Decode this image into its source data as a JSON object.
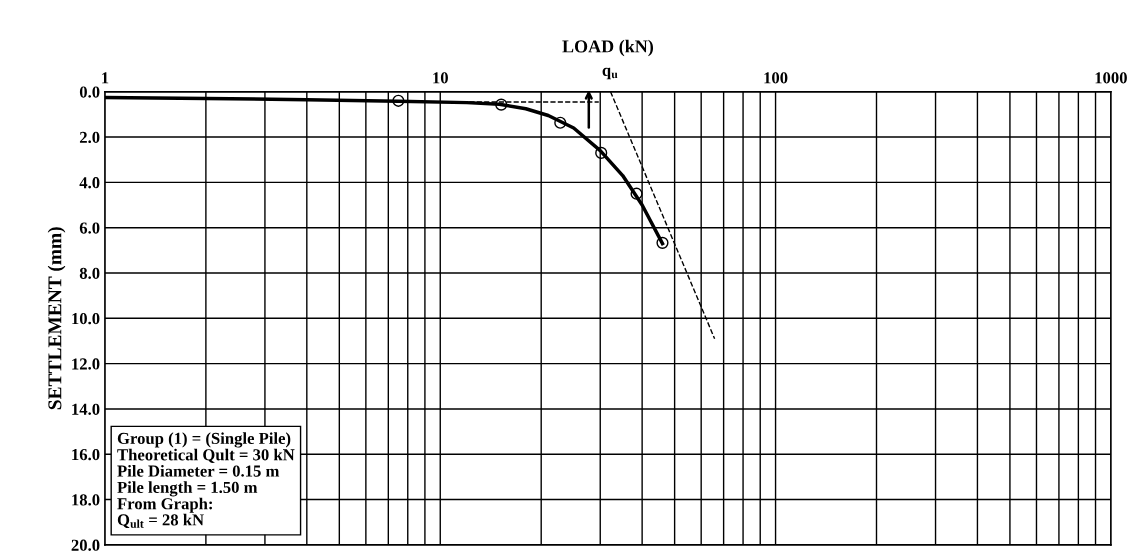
{
  "chart_data": {
    "type": "line",
    "xlabel": "LOAD (kN)",
    "ylabel": "SETTLEMENT (mm)",
    "log": "x",
    "grid": true,
    "xlim": [
      1,
      1000
    ],
    "xticks": [
      1,
      10,
      100,
      1000
    ],
    "ylim": [
      20,
      0
    ],
    "yticks": [
      {
        "value": 0,
        "label": "0.0"
      },
      {
        "value": 2,
        "label": "2.0"
      },
      {
        "value": 4,
        "label": "4.0"
      },
      {
        "value": 6,
        "label": "6.0"
      },
      {
        "value": 8,
        "label": "8.0"
      },
      {
        "value": 10,
        "label": "10.0"
      },
      {
        "value": 12,
        "label": "12.0"
      },
      {
        "value": 14,
        "label": "14.0"
      },
      {
        "value": 16,
        "label": "16.0"
      },
      {
        "value": 18,
        "label": "18.0"
      },
      {
        "value": 20,
        "label": "20.0"
      }
    ],
    "series": [
      {
        "color": "#000000",
        "line_style": "solid",
        "marker": "none",
        "x": [
          1,
          4,
          7.5,
          12,
          15,
          18,
          21,
          25,
          30,
          35,
          40,
          46
        ],
        "values": [
          0.25,
          0.35,
          0.42,
          0.48,
          0.55,
          0.75,
          1.05,
          1.6,
          2.6,
          3.7,
          5.0,
          6.7
        ]
      },
      {
        "type": "scatter",
        "color": "#000000",
        "marker": "circle",
        "x": [
          7.5,
          15.2,
          22.8,
          30.2,
          38.5,
          46
        ],
        "values": [
          0.4,
          0.57,
          1.37,
          2.7,
          4.5,
          6.67
        ]
      },
      {
        "type": "line",
        "color": "#000000",
        "line_style": "dashed",
        "marker": "none",
        "x": [
          10.5,
          29.7
        ],
        "values": [
          0.45,
          0.45
        ]
      },
      {
        "type": "line",
        "color": "#000000",
        "line_style": "dashed",
        "marker": "none",
        "x": [
          32.2,
          65.8
        ],
        "values": [
          0,
          10.9
        ]
      }
    ],
    "annotations": [
      "q$_{u}$",
      "Group (1) = (Single Pile)\nTheoretical Qult = 30 kN\nPile Diameter = 0.15 m\nPile length = 1.50 m\nFrom Graph:\nQ$_{ult}$ = 28 kN"
    ]
  }
}
